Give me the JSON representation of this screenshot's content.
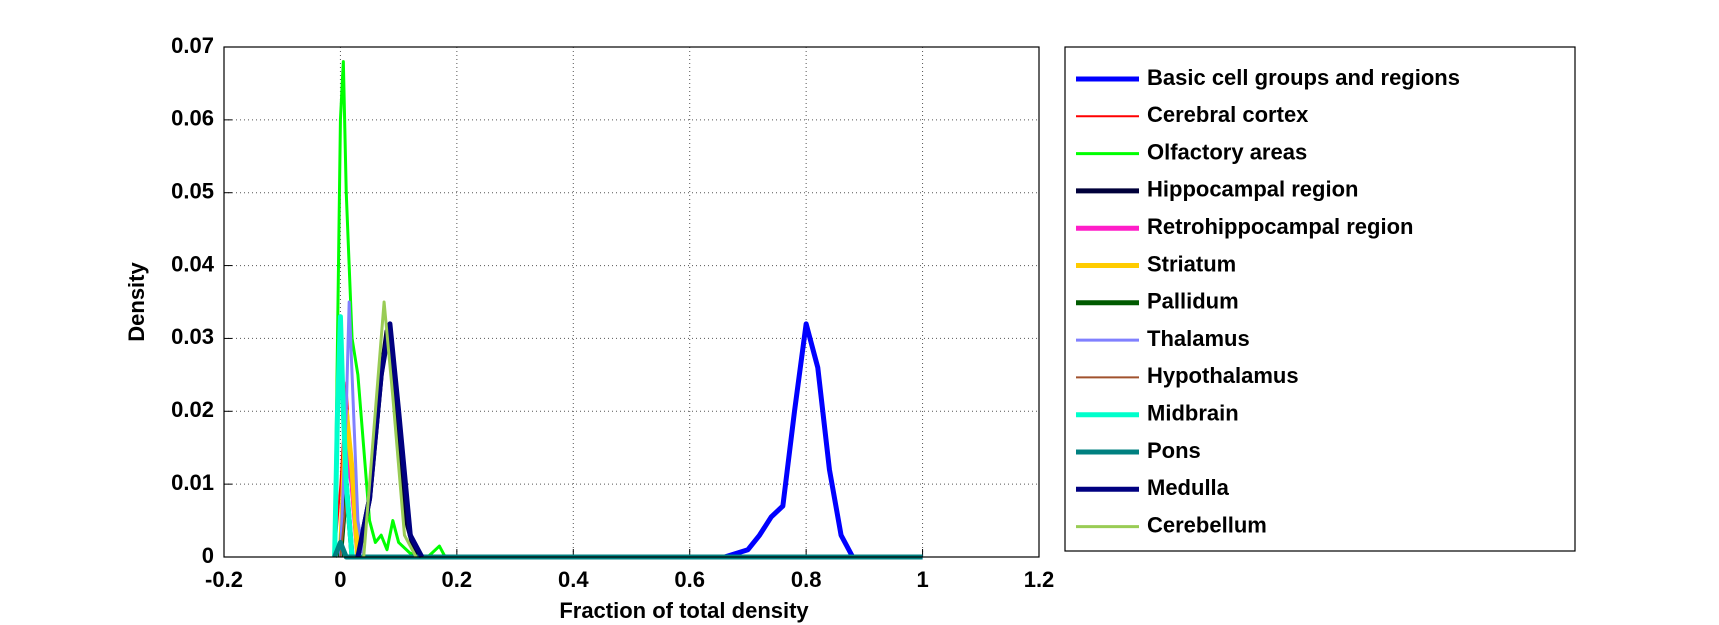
{
  "chart_data": {
    "type": "line",
    "xlabel": "Fraction of total density",
    "ylabel": "Density",
    "xlim": [
      -0.2,
      1.2
    ],
    "xticks": [
      -0.2,
      0,
      0.2,
      0.4,
      0.6,
      0.8,
      1,
      1.2
    ],
    "ylim": [
      0,
      0.07
    ],
    "yticks": [
      0,
      0.01,
      0.02,
      0.03,
      0.04,
      0.05,
      0.06,
      0.07
    ],
    "grid": true,
    "legend": "outside right",
    "series": [
      {
        "name": "Basic cell groups and regions",
        "color": "#0000ff",
        "linewidth": 5,
        "x": [
          0.1,
          0.66,
          0.7,
          0.72,
          0.74,
          0.76,
          0.78,
          0.8,
          0.82,
          0.84,
          0.86,
          0.88,
          1.0
        ],
        "values": [
          0,
          0,
          0.001,
          0.003,
          0.0055,
          0.007,
          0.02,
          0.032,
          0.026,
          0.012,
          0.003,
          0,
          0
        ]
      },
      {
        "name": "Cerebral cortex",
        "color": "#ff0000",
        "linewidth": 2,
        "x": [
          -0.01,
          0,
          0.01,
          0.02,
          0.03
        ],
        "values": [
          0,
          0.01,
          0.024,
          0.01,
          0
        ]
      },
      {
        "name": "Olfactory areas",
        "color": "#00ff00",
        "linewidth": 3,
        "x": [
          -0.01,
          0,
          0.005,
          0.01,
          0.02,
          0.03,
          0.04,
          0.05,
          0.06,
          0.07,
          0.08,
          0.09,
          0.1,
          0.12,
          0.15,
          0.17,
          0.18
        ],
        "values": [
          0,
          0.06,
          0.068,
          0.05,
          0.03,
          0.025,
          0.015,
          0.005,
          0.002,
          0.003,
          0.001,
          0.005,
          0.002,
          0.0005,
          0,
          0.0015,
          0
        ]
      },
      {
        "name": "Hippocampal region",
        "color": "#00003a",
        "linewidth": 5,
        "x": [
          0.03,
          0.05,
          0.07,
          0.08,
          0.09,
          0.11,
          0.13
        ],
        "values": [
          0,
          0.008,
          0.025,
          0.031,
          0.026,
          0.006,
          0
        ]
      },
      {
        "name": "Retrohippocampal region",
        "color": "#ff1dc8",
        "linewidth": 5,
        "x": [
          0,
          0.01,
          0.02,
          0.03
        ],
        "values": [
          0,
          0.015,
          0.01,
          0
        ]
      },
      {
        "name": "Striatum",
        "color": "#ffcc00",
        "linewidth": 5,
        "x": [
          0,
          0.01,
          0.02,
          0.03
        ],
        "values": [
          0,
          0.02,
          0.012,
          0
        ]
      },
      {
        "name": "Pallidum",
        "color": "#005a00",
        "linewidth": 5,
        "x": [
          0,
          0.01,
          0.02
        ],
        "values": [
          0,
          0.01,
          0
        ]
      },
      {
        "name": "Thalamus",
        "color": "#8080ff",
        "linewidth": 3,
        "x": [
          0,
          0.01,
          0.015,
          0.02,
          0.03,
          0.04
        ],
        "values": [
          0,
          0.02,
          0.035,
          0.025,
          0.005,
          0
        ]
      },
      {
        "name": "Hypothalamus",
        "color": "#a0522d",
        "linewidth": 2,
        "x": [
          0,
          0.01,
          0.02
        ],
        "values": [
          0,
          0.008,
          0
        ]
      },
      {
        "name": "Midbrain",
        "color": "#00ffcc",
        "linewidth": 5,
        "x": [
          -0.01,
          -0.005,
          0,
          0.005,
          0.01,
          0.02
        ],
        "values": [
          0,
          0.02,
          0.033,
          0.02,
          0.01,
          0
        ]
      },
      {
        "name": "Pons",
        "color": "#008080",
        "linewidth": 5,
        "x": [
          -0.01,
          0,
          0.01,
          1.0
        ],
        "values": [
          0,
          0.002,
          0,
          0
        ]
      },
      {
        "name": "Medulla",
        "color": "#000080",
        "linewidth": 5,
        "x": [
          0.03,
          0.05,
          0.07,
          0.085,
          0.1,
          0.12,
          0.14
        ],
        "values": [
          0,
          0.008,
          0.025,
          0.032,
          0.02,
          0.003,
          0
        ]
      },
      {
        "name": "Cerebellum",
        "color": "#99cc55",
        "linewidth": 3,
        "x": [
          0.04,
          0.06,
          0.075,
          0.09,
          0.11,
          0.13
        ],
        "values": [
          0,
          0.02,
          0.035,
          0.022,
          0.003,
          0
        ]
      }
    ]
  }
}
